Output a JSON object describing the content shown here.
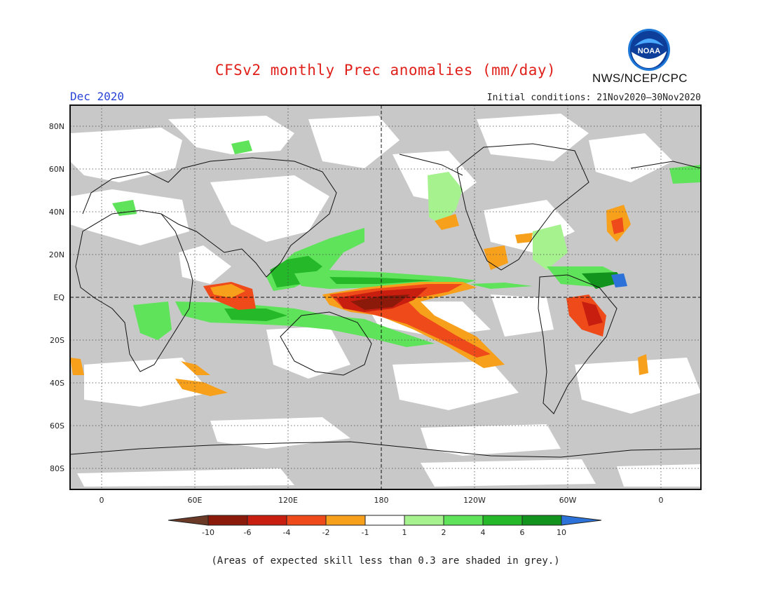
{
  "title": "CFSv2 monthly Prec anomalies (mm/day)",
  "valid_month": "Dec 2020",
  "initial_conditions": "Initial conditions: 21Nov2020–30Nov2020",
  "agency": "NWS/NCEP/CPC",
  "logo_text": "NOAA",
  "skill_note": "(Areas of expected skill less than 0.3 are shaded in grey.)",
  "lat_labels": [
    "80N",
    "60N",
    "40N",
    "20N",
    "EQ",
    "20S",
    "40S",
    "60S",
    "80S"
  ],
  "lon_labels": [
    "0",
    "60E",
    "120E",
    "180",
    "120W",
    "60W",
    "0"
  ],
  "colorbar": {
    "ticks": [
      "-10",
      "-6",
      "-4",
      "-2",
      "-1",
      "1",
      "2",
      "4",
      "6",
      "10"
    ],
    "colors": [
      "#8b1a0a",
      "#c81e10",
      "#ee4a1a",
      "#f7a01c",
      "#ffffff",
      "#a6f28f",
      "#5fe35a",
      "#25b92a",
      "#12931d"
    ],
    "low_color": "#6b3a26",
    "high_color": "#2c72d9"
  },
  "map_colors": {
    "grey_skill": "#c8c8c8",
    "land_outline": "#111111"
  }
}
